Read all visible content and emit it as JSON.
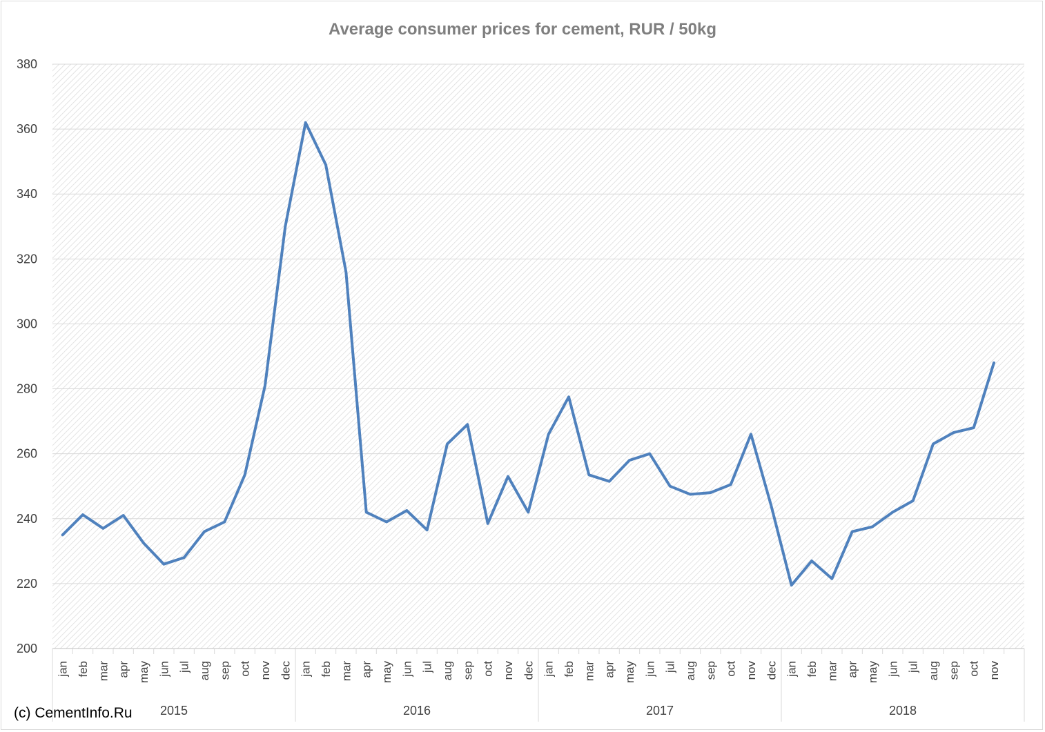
{
  "chart_data": {
    "type": "line",
    "title": "Average consumer prices for cement, RUR / 50kg",
    "xlabel": "",
    "ylabel": "",
    "ylim": [
      200,
      380
    ],
    "yticks": [
      200,
      220,
      240,
      260,
      280,
      300,
      320,
      340,
      360,
      380
    ],
    "grid": true,
    "legend": "none",
    "groups": [
      {
        "label": "2015",
        "months": [
          "jan",
          "feb",
          "mar",
          "apr",
          "may",
          "jun",
          "jul",
          "aug",
          "sep",
          "oct",
          "nov",
          "dec"
        ]
      },
      {
        "label": "2016",
        "months": [
          "jan",
          "feb",
          "mar",
          "apr",
          "may",
          "jun",
          "jul",
          "aug",
          "sep",
          "oct",
          "nov",
          "dec"
        ]
      },
      {
        "label": "2017",
        "months": [
          "jan",
          "feb",
          "mar",
          "apr",
          "may",
          "jun",
          "jul",
          "aug",
          "sep",
          "oct",
          "nov",
          "dec"
        ]
      },
      {
        "label": "2018",
        "months": [
          "jan",
          "feb",
          "mar",
          "apr",
          "may",
          "jun",
          "jul",
          "aug",
          "sep",
          "oct",
          "nov"
        ]
      }
    ],
    "series": [
      {
        "color": "#4f81bd",
        "values": [
          235,
          241.2,
          237,
          241,
          232.5,
          226,
          228,
          236,
          239,
          253.5,
          281,
          330,
          362,
          349,
          316,
          242,
          239,
          242.5,
          236.5,
          263,
          269,
          238.5,
          253,
          242,
          266,
          277.5,
          253.5,
          251.5,
          258,
          260,
          250,
          247.5,
          248,
          250.5,
          266,
          244,
          219.5,
          227,
          221.5,
          236,
          237.5,
          242,
          245.5,
          263,
          266.5,
          268,
          288
        ]
      }
    ]
  },
  "watermark": "(c) CementInfo.Ru",
  "colors": {
    "line": "#4f81bd",
    "grid": "#d9d9d9",
    "text": "#404040",
    "title": "#7f7f7f"
  }
}
